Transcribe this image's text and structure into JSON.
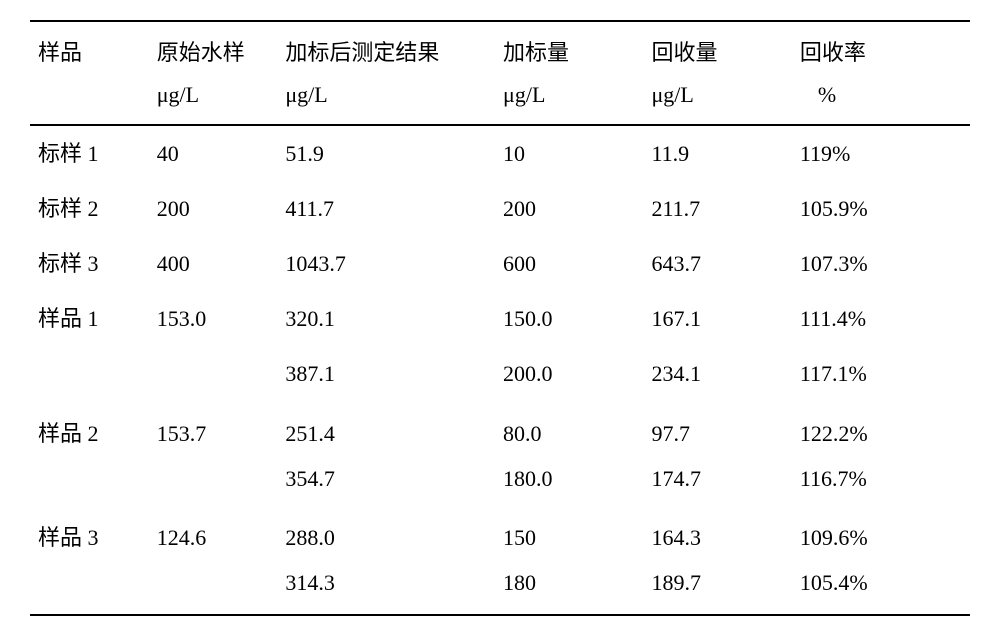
{
  "table": {
    "headers": {
      "sample": {
        "line1": "样品",
        "line2": ""
      },
      "original": {
        "line1": "原始水样",
        "line2": "μg/L"
      },
      "spiked_result": {
        "line1": "加标后测定结果",
        "line2": "μg/L"
      },
      "spike_amount": {
        "line1": "加标量",
        "line2": "μg/L"
      },
      "recovered": {
        "line1": "回收量",
        "line2": "μg/L"
      },
      "recovery_rate": {
        "line1": "回收率",
        "line2": "%"
      }
    },
    "rows": [
      {
        "sample": "标样 1",
        "original": "40",
        "spiked": "51.9",
        "amount": "10",
        "recovered": "11.9",
        "rate": "119%"
      },
      {
        "sample": "标样 2",
        "original": "200",
        "spiked": "411.7",
        "amount": "200",
        "recovered": "211.7",
        "rate": "105.9%"
      },
      {
        "sample": "标样 3",
        "original": "400",
        "spiked": "1043.7",
        "amount": "600",
        "recovered": "643.7",
        "rate": "107.3%"
      },
      {
        "sample": "样品 1",
        "original": "153.0",
        "spiked": "320.1",
        "amount": "150.0",
        "recovered": "167.1",
        "rate": "111.4%"
      },
      {
        "sample": "",
        "original": "",
        "spiked": "387.1",
        "amount": "200.0",
        "recovered": "234.1",
        "rate": "117.1%"
      },
      {
        "sample": "样品 2",
        "original": "153.7",
        "spiked": "251.4",
        "amount": "80.0",
        "recovered": "97.7",
        "rate": "122.2%",
        "spacer": true
      },
      {
        "sample": "",
        "original": "",
        "spiked": "354.7",
        "amount": "180.0",
        "recovered": "174.7",
        "rate": "116.7%"
      },
      {
        "sample": "样品 3",
        "original": "124.6",
        "spiked": "288.0",
        "amount": "150",
        "recovered": "164.3",
        "rate": "109.6%",
        "spacer": true
      },
      {
        "sample": "",
        "original": "",
        "spiked": "314.3",
        "amount": "180",
        "recovered": "189.7",
        "rate": "105.4%",
        "last": true
      }
    ]
  }
}
